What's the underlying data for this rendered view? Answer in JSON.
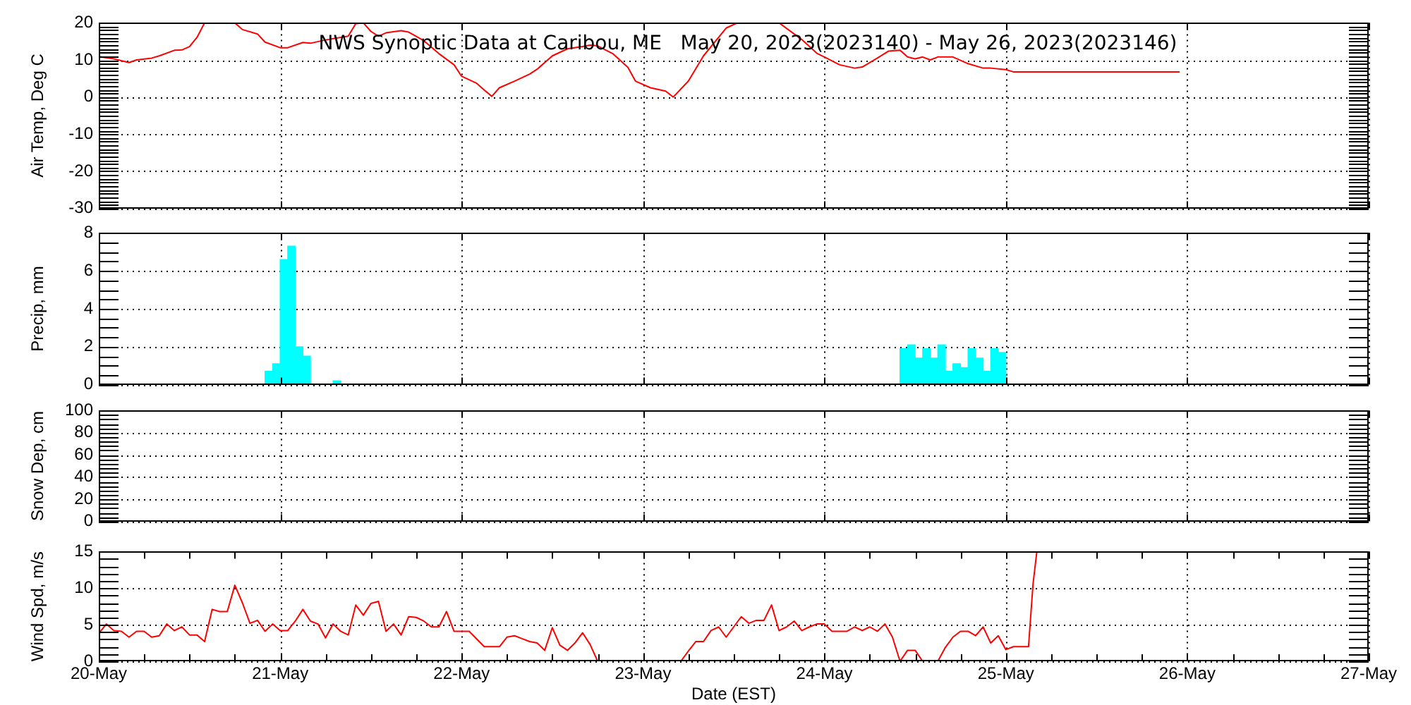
{
  "chart_data": [
    {
      "type": "line",
      "title": "NWS Synoptic Data at Caribou, ME   May 20, 2023(2023140) - May 26, 2023(2023146)",
      "ylabel": "Air Temp, Deg C",
      "color": "#ff0000",
      "x": [
        "2023-05-20T00:00",
        "2023-05-20T02:00",
        "2023-05-20T04:00",
        "2023-05-20T05:00",
        "2023-05-20T07:00",
        "2023-05-20T08:00",
        "2023-05-20T10:00",
        "2023-05-20T11:00",
        "2023-05-20T12:00",
        "2023-05-20T13:00",
        "2023-05-20T14:00",
        "2023-05-20T16:00",
        "2023-05-20T18:00",
        "2023-05-20T19:00",
        "2023-05-20T21:00",
        "2023-05-20T22:00",
        "2023-05-21T00:00",
        "2023-05-21T01:00",
        "2023-05-21T03:00",
        "2023-05-21T04:00",
        "2023-05-21T06:00",
        "2023-05-21T09:00",
        "2023-05-21T10:00",
        "2023-05-21T11:00",
        "2023-05-21T12:00",
        "2023-05-21T13:00",
        "2023-05-21T14:00",
        "2023-05-21T16:00",
        "2023-05-21T17:00",
        "2023-05-21T19:00",
        "2023-05-21T21:00",
        "2023-05-21T23:00",
        "2023-05-22T00:00",
        "2023-05-22T02:00",
        "2023-05-22T03:00",
        "2023-05-22T04:00",
        "2023-05-22T05:00",
        "2023-05-22T07:00",
        "2023-05-22T09:00",
        "2023-05-22T10:00",
        "2023-05-22T12:00",
        "2023-05-22T14:00",
        "2023-05-22T16:00",
        "2023-05-22T17:00",
        "2023-05-22T18:00",
        "2023-05-22T20:00",
        "2023-05-22T22:00",
        "2023-05-22T23:00",
        "2023-05-23T01:00",
        "2023-05-23T03:00",
        "2023-05-23T04:00",
        "2023-05-23T06:00",
        "2023-05-23T08:00",
        "2023-05-23T11:00",
        "2023-05-23T12:30",
        "2023-05-23T15:00",
        "2023-05-23T18:00",
        "2023-05-23T21:00",
        "2023-05-23T23:00",
        "2023-05-24T00:00",
        "2023-05-24T02:00",
        "2023-05-24T04:00",
        "2023-05-24T05:00",
        "2023-05-24T07:00",
        "2023-05-24T08:30",
        "2023-05-24T10:00",
        "2023-05-24T11:00",
        "2023-05-24T12:00",
        "2023-05-24T13:00",
        "2023-05-24T14:00",
        "2023-05-24T15:00",
        "2023-05-24T17:00",
        "2023-05-24T19:00",
        "2023-05-24T21:00",
        "2023-05-24T22:00",
        "2023-05-25T00:00",
        "2023-05-25T01:00",
        "2023-05-25T12:00",
        "2023-05-25T23:00"
      ],
      "values": [
        10.9,
        10.3,
        9.3,
        10.0,
        10.5,
        11.1,
        12.6,
        12.7,
        13.6,
        16.1,
        20,
        null,
        20,
        18.2,
        17.0,
        14.8,
        13.3,
        13.3,
        14.7,
        14.5,
        15.4,
        16.4,
        19.8,
        20,
        17.7,
        16.4,
        17.3,
        17.9,
        17.5,
        15.2,
        11.7,
        8.7,
        5.6,
        3.7,
        1.9,
        0.2,
        2.5,
        4.3,
        6.2,
        7.5,
        11.1,
        13.0,
        13.6,
        14.0,
        13.8,
        11.7,
        8.0,
        4.3,
        2.5,
        1.6,
        0.0,
        4.3,
        11.1,
        18.6,
        20,
        null,
        20,
        15.5,
        11.8,
        10.8,
        8.7,
        7.8,
        8.1,
        10.5,
        12.4,
        12.6,
        10.8,
        10.3,
        10.8,
        10.0,
        10.8,
        10.8,
        9.0,
        7.8,
        7.8,
        7.4,
        6.8,
        6.8,
        6.8
      ],
      "xlim": [
        "2023-05-20",
        "2023-05-27"
      ],
      "xticks": [
        {
          "value": "2023-05-20",
          "label": null
        },
        {
          "value": "2023-05-21",
          "label": null
        },
        {
          "value": "2023-05-22",
          "label": null
        },
        {
          "value": "2023-05-23",
          "label": null
        },
        {
          "value": "2023-05-24",
          "label": null
        },
        {
          "value": "2023-05-25",
          "label": null
        },
        {
          "value": "2023-05-26",
          "label": null
        },
        {
          "value": "2023-05-27",
          "label": null
        }
      ],
      "ylim": [
        -30,
        20
      ],
      "yticks": [
        -30,
        {
          "value": -29,
          "label": null
        },
        {
          "value": -28,
          "label": null
        },
        {
          "value": -27,
          "label": null
        },
        {
          "value": -26,
          "label": null
        },
        {
          "value": -25,
          "label": null
        },
        {
          "value": -24,
          "label": null
        },
        {
          "value": -23,
          "label": null
        },
        {
          "value": -22,
          "label": null
        },
        {
          "value": -21,
          "label": null
        },
        -20,
        {
          "value": -19,
          "label": null
        },
        {
          "value": -18,
          "label": null
        },
        {
          "value": -17,
          "label": null
        },
        {
          "value": -16,
          "label": null
        },
        {
          "value": -15,
          "label": null
        },
        {
          "value": -14,
          "label": null
        },
        {
          "value": -13,
          "label": null
        },
        {
          "value": -12,
          "label": null
        },
        {
          "value": -11,
          "label": null
        },
        -10,
        {
          "value": -9,
          "label": null
        },
        {
          "value": -8,
          "label": null
        },
        {
          "value": -7,
          "label": null
        },
        {
          "value": -6,
          "label": null
        },
        {
          "value": -5,
          "label": null
        },
        {
          "value": -4,
          "label": null
        },
        {
          "value": -3,
          "label": null
        },
        {
          "value": -2,
          "label": null
        },
        {
          "value": -1,
          "label": null
        },
        0,
        {
          "value": 1,
          "label": null
        },
        {
          "value": 2,
          "label": null
        },
        {
          "value": 3,
          "label": null
        },
        {
          "value": 4,
          "label": null
        },
        {
          "value": 5,
          "label": null
        },
        {
          "value": 6,
          "label": null
        },
        {
          "value": 7,
          "label": null
        },
        {
          "value": 8,
          "label": null
        },
        {
          "value": 9,
          "label": null
        },
        10,
        {
          "value": 11,
          "label": null
        },
        {
          "value": 12,
          "label": null
        },
        {
          "value": 13,
          "label": null
        },
        {
          "value": 14,
          "label": null
        },
        {
          "value": 15,
          "label": null
        },
        {
          "value": 16,
          "label": null
        },
        {
          "value": 17,
          "label": null
        },
        {
          "value": 18,
          "label": null
        },
        {
          "value": 19,
          "label": null
        },
        20
      ],
      "grid": true,
      "tick_labels": "y"
    },
    {
      "type": "bar",
      "ylabel": "Precip, mm",
      "color": "#00ffff",
      "x": [
        "2023-05-20T22:30",
        "2023-05-20T23:30",
        "2023-05-21T00:30",
        "2023-05-21T01:30",
        "2023-05-21T02:30",
        "2023-05-21T03:30",
        "2023-05-21T07:30",
        "2023-05-24T10:30",
        "2023-05-24T11:30",
        "2023-05-24T12:30",
        "2023-05-24T13:30",
        "2023-05-24T14:30",
        "2023-05-24T15:30",
        "2023-05-24T16:30",
        "2023-05-24T17:30",
        "2023-05-24T18:30",
        "2023-05-24T19:30",
        "2023-05-24T20:30",
        "2023-05-24T21:30",
        "2023-05-24T22:30",
        "2023-05-24T23:30"
      ],
      "values": [
        0.7,
        1.1,
        6.6,
        7.3,
        2.0,
        1.5,
        0.2,
        1.9,
        2.1,
        1.4,
        1.9,
        1.4,
        2.1,
        0.7,
        1.1,
        0.9,
        1.9,
        1.4,
        0.7,
        1.9,
        1.7
      ],
      "xlim": [
        "2023-05-20",
        "2023-05-27"
      ],
      "xticks": [
        {
          "value": "2023-05-20",
          "label": null
        },
        {
          "value": "2023-05-21",
          "label": null
        },
        {
          "value": "2023-05-22",
          "label": null
        },
        {
          "value": "2023-05-23",
          "label": null
        },
        {
          "value": "2023-05-24",
          "label": null
        },
        {
          "value": "2023-05-25",
          "label": null
        },
        {
          "value": "2023-05-26",
          "label": null
        },
        {
          "value": "2023-05-27",
          "label": null
        }
      ],
      "ylim": [
        0,
        8
      ],
      "yticks": [
        0,
        {
          "value": 0.5,
          "label": null
        },
        {
          "value": 1,
          "label": null
        },
        {
          "value": 1.5,
          "label": null
        },
        2,
        {
          "value": 2.5,
          "label": null
        },
        {
          "value": 3,
          "label": null
        },
        {
          "value": 3.5,
          "label": null
        },
        4,
        {
          "value": 4.5,
          "label": null
        },
        {
          "value": 5,
          "label": null
        },
        {
          "value": 5.5,
          "label": null
        },
        6,
        {
          "value": 6.5,
          "label": null
        },
        {
          "value": 7,
          "label": null
        },
        {
          "value": 7.5,
          "label": null
        },
        8
      ],
      "grid": true,
      "tick_labels": "y"
    },
    {
      "type": "line",
      "ylabel": "Snow Dep, cm",
      "xlim": [
        "2023-05-20",
        "2023-05-27"
      ],
      "xticks": [
        {
          "value": "2023-05-20",
          "label": null
        },
        {
          "value": "2023-05-21",
          "label": null
        },
        {
          "value": "2023-05-22",
          "label": null
        },
        {
          "value": "2023-05-23",
          "label": null
        },
        {
          "value": "2023-05-24",
          "label": null
        },
        {
          "value": "2023-05-25",
          "label": null
        },
        {
          "value": "2023-05-26",
          "label": null
        },
        {
          "value": "2023-05-27",
          "label": null
        }
      ],
      "ylim": [
        0,
        100
      ],
      "yticks": [
        0,
        {
          "value": 4,
          "label": null
        },
        {
          "value": 8,
          "label": null
        },
        {
          "value": 12,
          "label": null
        },
        {
          "value": 16,
          "label": null
        },
        20,
        {
          "value": 24,
          "label": null
        },
        {
          "value": 28,
          "label": null
        },
        {
          "value": 32,
          "label": null
        },
        {
          "value": 36,
          "label": null
        },
        40,
        {
          "value": 44,
          "label": null
        },
        {
          "value": 48,
          "label": null
        },
        {
          "value": 52,
          "label": null
        },
        {
          "value": 56,
          "label": null
        },
        60,
        {
          "value": 64,
          "label": null
        },
        {
          "value": 68,
          "label": null
        },
        {
          "value": 72,
          "label": null
        },
        {
          "value": 76,
          "label": null
        },
        80,
        {
          "value": 84,
          "label": null
        },
        {
          "value": 88,
          "label": null
        },
        {
          "value": 92,
          "label": null
        },
        {
          "value": 96,
          "label": null
        },
        100
      ],
      "grid": true,
      "tick_labels": "y"
    },
    {
      "type": "line",
      "ylabel": "Wind Spd, m/s",
      "xlabel": "Date (EST)",
      "color": "#ff0000",
      "x": [
        "2023-05-20T00:00",
        "2023-05-20T01:00",
        "2023-05-20T02:00",
        "2023-05-20T03:00",
        "2023-05-20T04:00",
        "2023-05-20T05:00",
        "2023-05-20T06:00",
        "2023-05-20T07:00",
        "2023-05-20T08:00",
        "2023-05-20T09:00",
        "2023-05-20T10:00",
        "2023-05-20T11:00",
        "2023-05-20T12:00",
        "2023-05-20T13:00",
        "2023-05-20T14:00",
        "2023-05-20T15:00",
        "2023-05-20T16:00",
        "2023-05-20T17:00",
        "2023-05-20T18:00",
        "2023-05-20T19:00",
        "2023-05-20T20:00",
        "2023-05-20T21:00",
        "2023-05-20T22:00",
        "2023-05-20T23:00",
        "2023-05-21T00:00",
        "2023-05-21T01:00",
        "2023-05-21T02:00",
        "2023-05-21T03:00",
        "2023-05-21T04:00",
        "2023-05-21T05:00",
        "2023-05-21T06:00",
        "2023-05-21T07:00",
        "2023-05-21T08:00",
        "2023-05-21T09:00",
        "2023-05-21T10:00",
        "2023-05-21T11:00",
        "2023-05-21T12:00",
        "2023-05-21T13:00",
        "2023-05-21T14:00",
        "2023-05-21T15:00",
        "2023-05-21T16:00",
        "2023-05-21T17:00",
        "2023-05-21T18:00",
        "2023-05-21T19:00",
        "2023-05-21T20:00",
        "2023-05-21T21:00",
        "2023-05-21T22:00",
        "2023-05-21T23:00",
        "2023-05-22T00:00",
        "2023-05-22T01:00",
        "2023-05-22T03:00",
        "2023-05-22T05:00",
        "2023-05-22T06:00",
        "2023-05-22T07:00",
        "2023-05-22T08:00",
        "2023-05-22T09:00",
        "2023-05-22T10:00",
        "2023-05-22T11:00",
        "2023-05-22T12:00",
        "2023-05-22T13:00",
        "2023-05-22T14:00",
        "2023-05-22T15:00",
        "2023-05-22T16:00",
        "2023-05-22T17:00",
        "2023-05-22T18:00",
        "2023-05-23T05:00",
        "2023-05-23T06:00",
        "2023-05-23T07:00",
        "2023-05-23T08:00",
        "2023-05-23T09:00",
        "2023-05-23T10:00",
        "2023-05-23T11:00",
        "2023-05-23T13:00",
        "2023-05-23T14:00",
        "2023-05-23T15:00",
        "2023-05-23T16:00",
        "2023-05-23T17:00",
        "2023-05-23T18:00",
        "2023-05-23T19:00",
        "2023-05-23T20:00",
        "2023-05-23T21:00",
        "2023-05-23T22:00",
        "2023-05-23T23:00",
        "2023-05-24T00:00",
        "2023-05-24T01:00",
        "2023-05-24T03:00",
        "2023-05-24T04:00",
        "2023-05-24T05:00",
        "2023-05-24T06:00",
        "2023-05-24T07:00",
        "2023-05-24T08:00",
        "2023-05-24T09:00",
        "2023-05-24T10:00",
        "2023-05-24T11:00",
        "2023-05-24T12:00",
        "2023-05-24T13:00",
        "2023-05-24T15:00",
        "2023-05-24T16:00",
        "2023-05-24T17:00",
        "2023-05-24T18:00",
        "2023-05-24T19:00",
        "2023-05-24T20:00",
        "2023-05-24T21:00",
        "2023-05-24T22:00",
        "2023-05-24T23:00",
        "2023-05-25T00:00",
        "2023-05-25T01:00",
        "2023-05-25T03:00",
        "2023-05-25T03:36",
        "2023-05-25T04:06"
      ],
      "values": [
        3.8,
        5.1,
        4.2,
        4.1,
        3.3,
        4.1,
        4.1,
        3.3,
        3.5,
        5.1,
        4.2,
        4.7,
        3.6,
        3.6,
        2.7,
        7.1,
        6.8,
        6.8,
        10.4,
        8.0,
        5.2,
        5.6,
        4.1,
        5.1,
        4.2,
        4.2,
        5.5,
        7.1,
        5.5,
        5.1,
        3.2,
        5.1,
        4.1,
        3.6,
        7.7,
        6.3,
        7.9,
        8.2,
        4.1,
        5.1,
        3.6,
        6.1,
        6.0,
        5.5,
        4.7,
        4.7,
        6.8,
        4.1,
        4.1,
        4.1,
        2.0,
        2.0,
        3.3,
        3.5,
        3.1,
        2.7,
        2.5,
        1.5,
        4.6,
        2.2,
        1.5,
        2.5,
        3.9,
        2.3,
        0,
        0,
        1.4,
        2.7,
        2.7,
        4.2,
        4.7,
        3.3,
        6.1,
        5.2,
        5.6,
        5.6,
        7.7,
        4.2,
        4.7,
        5.5,
        4.2,
        4.7,
        5.1,
        5.1,
        4.1,
        4.1,
        4.7,
        4.2,
        4.7,
        4.1,
        5.1,
        3.3,
        0,
        1.5,
        1.5,
        0,
        0,
        1.9,
        3.3,
        4.1,
        4.1,
        3.5,
        4.7,
        2.5,
        3.5,
        1.6,
        2.0,
        2.0,
        10.6,
        15
      ],
      "xlim": [
        "2023-05-20",
        "2023-05-27"
      ],
      "xticks": [
        {
          "value": "2023-05-20",
          "label": "20-May"
        },
        {
          "value": "2023-05-20T06:00",
          "label": null
        },
        {
          "value": "2023-05-20T12:00",
          "label": null
        },
        {
          "value": "2023-05-20T18:00",
          "label": null
        },
        {
          "value": "2023-05-21",
          "label": "21-May"
        },
        {
          "value": "2023-05-21T06:00",
          "label": null
        },
        {
          "value": "2023-05-21T12:00",
          "label": null
        },
        {
          "value": "2023-05-21T18:00",
          "label": null
        },
        {
          "value": "2023-05-22",
          "label": "22-May"
        },
        {
          "value": "2023-05-22T06:00",
          "label": null
        },
        {
          "value": "2023-05-22T12:00",
          "label": null
        },
        {
          "value": "2023-05-22T18:00",
          "label": null
        },
        {
          "value": "2023-05-23",
          "label": "23-May"
        },
        {
          "value": "2023-05-23T06:00",
          "label": null
        },
        {
          "value": "2023-05-23T12:00",
          "label": null
        },
        {
          "value": "2023-05-23T18:00",
          "label": null
        },
        {
          "value": "2023-05-24",
          "label": "24-May"
        },
        {
          "value": "2023-05-24T06:00",
          "label": null
        },
        {
          "value": "2023-05-24T12:00",
          "label": null
        },
        {
          "value": "2023-05-24T18:00",
          "label": null
        },
        {
          "value": "2023-05-25",
          "label": "25-May"
        },
        {
          "value": "2023-05-25T06:00",
          "label": null
        },
        {
          "value": "2023-05-25T12:00",
          "label": null
        },
        {
          "value": "2023-05-25T18:00",
          "label": null
        },
        {
          "value": "2023-05-26",
          "label": "26-May"
        },
        {
          "value": "2023-05-26T06:00",
          "label": null
        },
        {
          "value": "2023-05-26T12:00",
          "label": null
        },
        {
          "value": "2023-05-26T18:00",
          "label": null
        },
        {
          "value": "2023-05-27",
          "label": "27-May"
        }
      ],
      "ylim": [
        0,
        15
      ],
      "yticks": [
        0,
        {
          "value": 1,
          "label": null
        },
        {
          "value": 2,
          "label": null
        },
        {
          "value": 3,
          "label": null
        },
        {
          "value": 4,
          "label": null
        },
        5,
        {
          "value": 6,
          "label": null
        },
        {
          "value": 7,
          "label": null
        },
        {
          "value": 8,
          "label": null
        },
        {
          "value": 9,
          "label": null
        },
        10,
        {
          "value": 11,
          "label": null
        },
        {
          "value": 12,
          "label": null
        },
        {
          "value": 13,
          "label": null
        },
        {
          "value": 14,
          "label": null
        },
        15
      ],
      "grid": true
    }
  ]
}
